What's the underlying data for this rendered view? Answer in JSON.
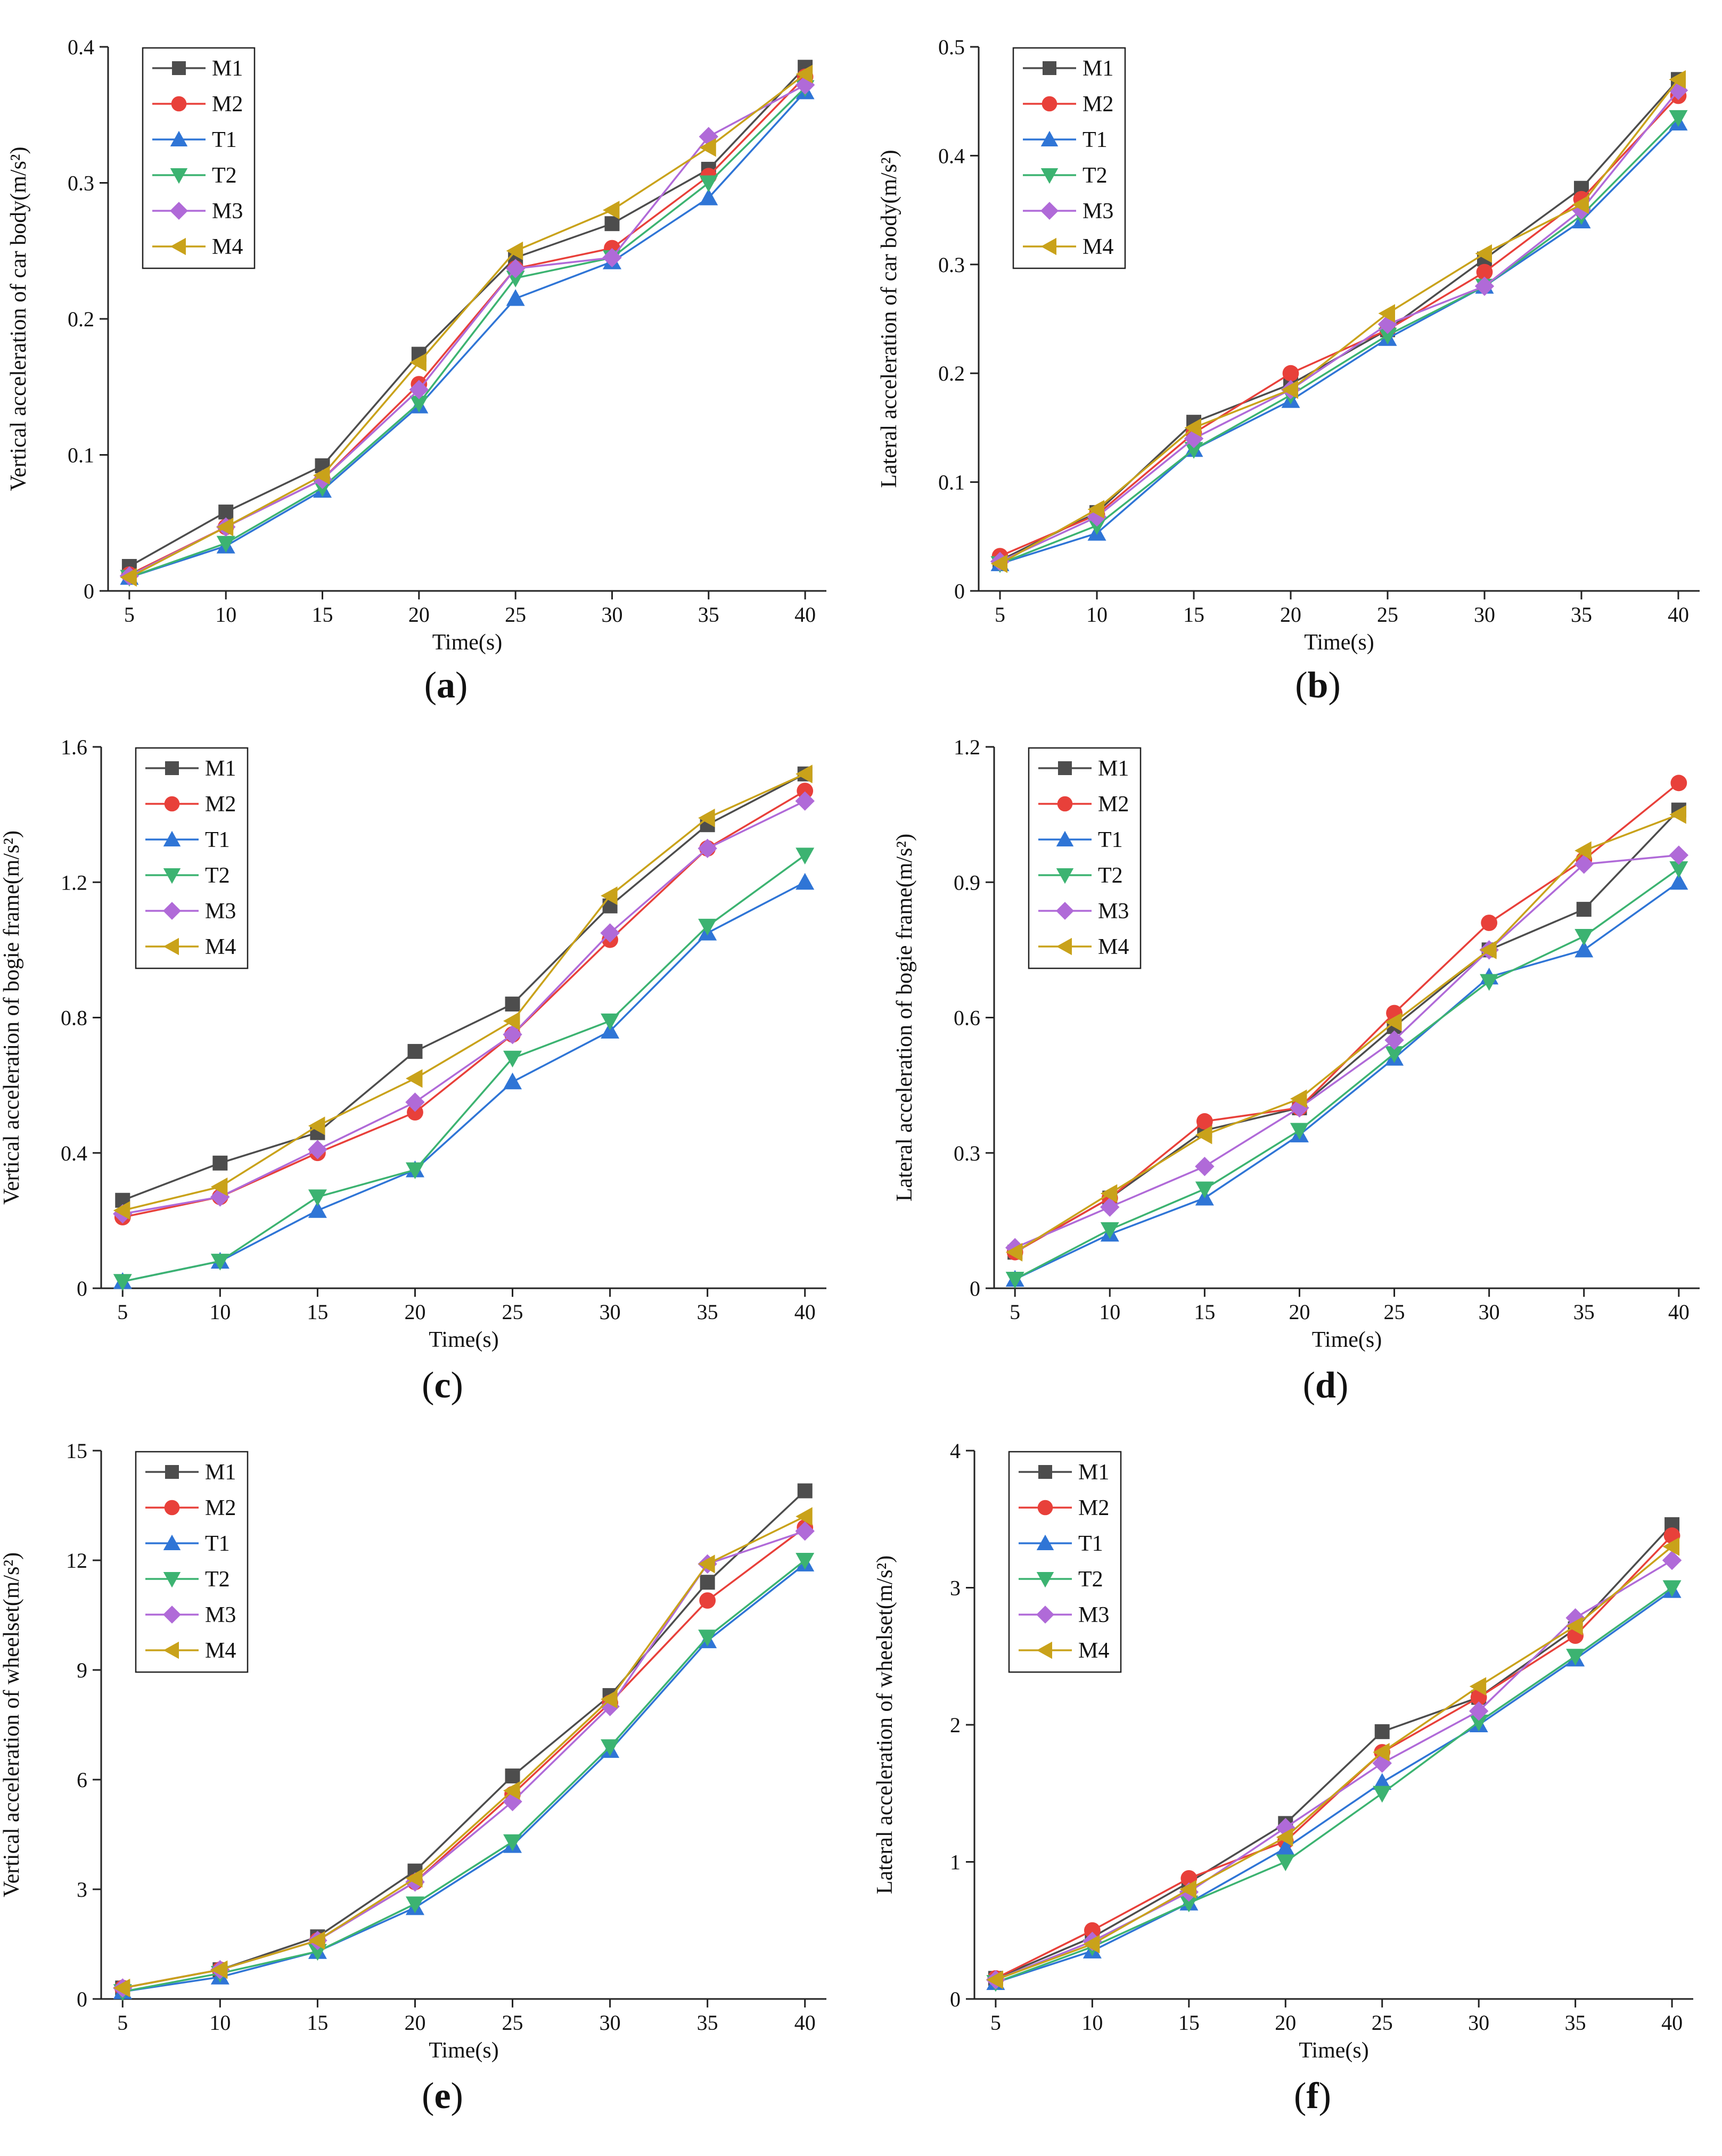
{
  "colors": {
    "M1": "#4d4d4d",
    "M2": "#e8403a",
    "T1": "#2f75d6",
    "T2": "#3cb371",
    "M3": "#b06ad8",
    "M4": "#c9a21a"
  },
  "chart_data": [
    {
      "id": "a",
      "type": "line",
      "panel_label": "a",
      "xlabel": "Time(s)",
      "ylabel": "Vertical acceleration of car body(m/s²)",
      "x": [
        5,
        10,
        15,
        20,
        25,
        30,
        35,
        40
      ],
      "x_tick_labels": [
        "5",
        "10",
        "15",
        "20",
        "25",
        "30",
        "35",
        "40"
      ],
      "ylim": [
        0,
        0.4
      ],
      "y_ticks": [
        0,
        0.1,
        0.2,
        0.3,
        0.4
      ],
      "y_tick_labels": [
        "0",
        "0.1",
        "0.2",
        "0.3",
        "0.4"
      ],
      "legend": "top-left",
      "series": [
        {
          "name": "M1",
          "marker": "square",
          "values": [
            0.018,
            0.058,
            0.092,
            0.174,
            0.245,
            0.27,
            0.31,
            0.385
          ]
        },
        {
          "name": "M2",
          "marker": "circle",
          "values": [
            0.012,
            0.047,
            0.082,
            0.152,
            0.237,
            0.252,
            0.305,
            0.378
          ]
        },
        {
          "name": "T1",
          "marker": "triangle-up",
          "values": [
            0.01,
            0.033,
            0.074,
            0.136,
            0.215,
            0.242,
            0.289,
            0.367
          ]
        },
        {
          "name": "T2",
          "marker": "triangle-down",
          "values": [
            0.01,
            0.035,
            0.076,
            0.138,
            0.23,
            0.245,
            0.3,
            0.37
          ]
        },
        {
          "name": "M3",
          "marker": "diamond",
          "values": [
            0.011,
            0.047,
            0.082,
            0.148,
            0.237,
            0.245,
            0.334,
            0.372
          ]
        },
        {
          "name": "M4",
          "marker": "triangle-left",
          "values": [
            0.01,
            0.047,
            0.085,
            0.168,
            0.25,
            0.28,
            0.326,
            0.38
          ]
        }
      ]
    },
    {
      "id": "b",
      "type": "line",
      "panel_label": "b",
      "xlabel": "Time(s)",
      "ylabel": "Lateral acceleration of car body(m/s²)",
      "x": [
        5,
        10,
        15,
        20,
        25,
        30,
        35,
        40
      ],
      "x_tick_labels": [
        "5",
        "10",
        "15",
        "20",
        "25",
        "30",
        "35",
        "40"
      ],
      "ylim": [
        0,
        0.5
      ],
      "y_ticks": [
        0,
        0.1,
        0.2,
        0.3,
        0.4,
        0.5
      ],
      "y_tick_labels": [
        "0",
        "0.1",
        "0.2",
        "0.3",
        "0.4",
        "0.5"
      ],
      "legend": "top-left",
      "series": [
        {
          "name": "M1",
          "marker": "square",
          "values": [
            0.028,
            0.072,
            0.155,
            0.19,
            0.24,
            0.305,
            0.37,
            0.47
          ]
        },
        {
          "name": "M2",
          "marker": "circle",
          "values": [
            0.032,
            0.07,
            0.145,
            0.2,
            0.24,
            0.293,
            0.36,
            0.455
          ]
        },
        {
          "name": "T1",
          "marker": "triangle-up",
          "values": [
            0.025,
            0.053,
            0.13,
            0.175,
            0.232,
            0.28,
            0.34,
            0.43
          ]
        },
        {
          "name": "T2",
          "marker": "triangle-down",
          "values": [
            0.025,
            0.06,
            0.13,
            0.18,
            0.235,
            0.28,
            0.345,
            0.435
          ]
        },
        {
          "name": "M3",
          "marker": "diamond",
          "values": [
            0.027,
            0.068,
            0.14,
            0.185,
            0.245,
            0.28,
            0.35,
            0.46
          ]
        },
        {
          "name": "M4",
          "marker": "triangle-left",
          "values": [
            0.025,
            0.075,
            0.15,
            0.185,
            0.255,
            0.31,
            0.355,
            0.47
          ]
        }
      ]
    },
    {
      "id": "c",
      "type": "line",
      "panel_label": "c",
      "xlabel": "Time(s)",
      "ylabel": "Vertical acceleration of bogie frame(m/s²)",
      "x": [
        5,
        10,
        15,
        20,
        25,
        30,
        35,
        40
      ],
      "x_tick_labels": [
        "5",
        "10",
        "15",
        "20",
        "25",
        "30",
        "35",
        "40"
      ],
      "ylim": [
        0,
        1.6
      ],
      "y_ticks": [
        0,
        0.4,
        0.8,
        1.2,
        1.6
      ],
      "y_tick_labels": [
        "0",
        "0.4",
        "0.8",
        "1.2",
        "1.6"
      ],
      "legend": "top-left",
      "series": [
        {
          "name": "M1",
          "marker": "square",
          "values": [
            0.26,
            0.37,
            0.46,
            0.7,
            0.84,
            1.13,
            1.37,
            1.52
          ]
        },
        {
          "name": "M2",
          "marker": "circle",
          "values": [
            0.21,
            0.27,
            0.4,
            0.52,
            0.75,
            1.03,
            1.3,
            1.47
          ]
        },
        {
          "name": "T1",
          "marker": "triangle-up",
          "values": [
            0.02,
            0.08,
            0.23,
            0.35,
            0.61,
            0.76,
            1.05,
            1.2
          ]
        },
        {
          "name": "T2",
          "marker": "triangle-down",
          "values": [
            0.02,
            0.08,
            0.27,
            0.35,
            0.68,
            0.79,
            1.07,
            1.28
          ]
        },
        {
          "name": "M3",
          "marker": "diamond",
          "values": [
            0.22,
            0.27,
            0.41,
            0.55,
            0.75,
            1.05,
            1.3,
            1.44
          ]
        },
        {
          "name": "M4",
          "marker": "triangle-left",
          "values": [
            0.23,
            0.3,
            0.48,
            0.62,
            0.79,
            1.16,
            1.39,
            1.52
          ]
        }
      ]
    },
    {
      "id": "d",
      "type": "line",
      "panel_label": "d",
      "xlabel": "Time(s)",
      "ylabel": "Lateral acceleration of bogie frame(m/s²)",
      "x": [
        5,
        10,
        15,
        20,
        25,
        30,
        35,
        40
      ],
      "x_tick_labels": [
        "5",
        "10",
        "15",
        "20",
        "25",
        "30",
        "35",
        "40"
      ],
      "ylim": [
        0,
        1.2
      ],
      "y_ticks": [
        0,
        0.3,
        0.6,
        0.9,
        1.2
      ],
      "y_tick_labels": [
        "0",
        "0.3",
        "0.6",
        "0.9",
        "1.2"
      ],
      "legend": "top-left",
      "series": [
        {
          "name": "M1",
          "marker": "square",
          "values": [
            0.08,
            0.2,
            0.35,
            0.4,
            0.58,
            0.75,
            0.84,
            1.06
          ]
        },
        {
          "name": "M2",
          "marker": "circle",
          "values": [
            0.08,
            0.2,
            0.37,
            0.4,
            0.61,
            0.81,
            0.95,
            1.12
          ]
        },
        {
          "name": "T1",
          "marker": "triangle-up",
          "values": [
            0.02,
            0.12,
            0.2,
            0.34,
            0.51,
            0.69,
            0.75,
            0.9
          ]
        },
        {
          "name": "T2",
          "marker": "triangle-down",
          "values": [
            0.02,
            0.13,
            0.22,
            0.35,
            0.52,
            0.68,
            0.78,
            0.93
          ]
        },
        {
          "name": "M3",
          "marker": "diamond",
          "values": [
            0.09,
            0.18,
            0.27,
            0.4,
            0.55,
            0.75,
            0.94,
            0.96
          ]
        },
        {
          "name": "M4",
          "marker": "triangle-left",
          "values": [
            0.08,
            0.21,
            0.34,
            0.42,
            0.59,
            0.75,
            0.97,
            1.05
          ]
        }
      ]
    },
    {
      "id": "e",
      "type": "line",
      "panel_label": "e",
      "xlabel": "Time(s)",
      "ylabel": "Vertical acceleration of wheelset(m/s²)",
      "x": [
        5,
        10,
        15,
        20,
        25,
        30,
        35,
        40
      ],
      "x_tick_labels": [
        "5",
        "10",
        "15",
        "20",
        "25",
        "30",
        "35",
        "40"
      ],
      "ylim": [
        0,
        15
      ],
      "y_ticks": [
        0,
        3,
        6,
        9,
        12,
        15
      ],
      "y_tick_labels": [
        "0",
        "3",
        "6",
        "9",
        "12",
        "15"
      ],
      "legend": "top-left",
      "series": [
        {
          "name": "M1",
          "marker": "square",
          "values": [
            0.3,
            0.8,
            1.7,
            3.5,
            6.1,
            8.3,
            11.4,
            13.9
          ]
        },
        {
          "name": "M2",
          "marker": "circle",
          "values": [
            0.3,
            0.8,
            1.6,
            3.2,
            5.6,
            8.1,
            10.9,
            12.9
          ]
        },
        {
          "name": "T1",
          "marker": "triangle-up",
          "values": [
            0.2,
            0.6,
            1.3,
            2.5,
            4.2,
            6.8,
            9.8,
            11.9
          ]
        },
        {
          "name": "T2",
          "marker": "triangle-down",
          "values": [
            0.2,
            0.7,
            1.3,
            2.6,
            4.3,
            6.9,
            9.9,
            12.0
          ]
        },
        {
          "name": "M3",
          "marker": "diamond",
          "values": [
            0.3,
            0.8,
            1.6,
            3.2,
            5.4,
            8.0,
            11.9,
            12.8
          ]
        },
        {
          "name": "M4",
          "marker": "triangle-left",
          "values": [
            0.3,
            0.8,
            1.6,
            3.3,
            5.7,
            8.2,
            11.9,
            13.2
          ]
        }
      ]
    },
    {
      "id": "f",
      "type": "line",
      "panel_label": "f",
      "xlabel": "Time(s)",
      "ylabel": "Lateral acceleration of wheelset(m/s²)",
      "x": [
        5,
        10,
        15,
        20,
        25,
        30,
        35,
        40
      ],
      "x_tick_labels": [
        "5",
        "10",
        "15",
        "20",
        "25",
        "30",
        "35",
        "40"
      ],
      "ylim": [
        0,
        4
      ],
      "y_ticks": [
        0,
        1,
        2,
        3,
        4
      ],
      "y_tick_labels": [
        "0",
        "1",
        "2",
        "3",
        "4"
      ],
      "legend": "top-left",
      "series": [
        {
          "name": "M1",
          "marker": "square",
          "values": [
            0.15,
            0.45,
            0.85,
            1.28,
            1.95,
            2.2,
            2.7,
            3.46
          ]
        },
        {
          "name": "M2",
          "marker": "circle",
          "values": [
            0.15,
            0.5,
            0.88,
            1.15,
            1.8,
            2.2,
            2.65,
            3.38
          ]
        },
        {
          "name": "T1",
          "marker": "triangle-up",
          "values": [
            0.12,
            0.35,
            0.7,
            1.1,
            1.58,
            2.0,
            2.48,
            2.98
          ]
        },
        {
          "name": "T2",
          "marker": "triangle-down",
          "values": [
            0.12,
            0.38,
            0.7,
            1.0,
            1.5,
            2.02,
            2.5,
            3.0
          ]
        },
        {
          "name": "M3",
          "marker": "diamond",
          "values": [
            0.14,
            0.42,
            0.78,
            1.25,
            1.72,
            2.1,
            2.78,
            3.2
          ]
        },
        {
          "name": "M4",
          "marker": "triangle-left",
          "values": [
            0.14,
            0.4,
            0.8,
            1.18,
            1.8,
            2.28,
            2.72,
            3.3
          ]
        }
      ]
    }
  ]
}
